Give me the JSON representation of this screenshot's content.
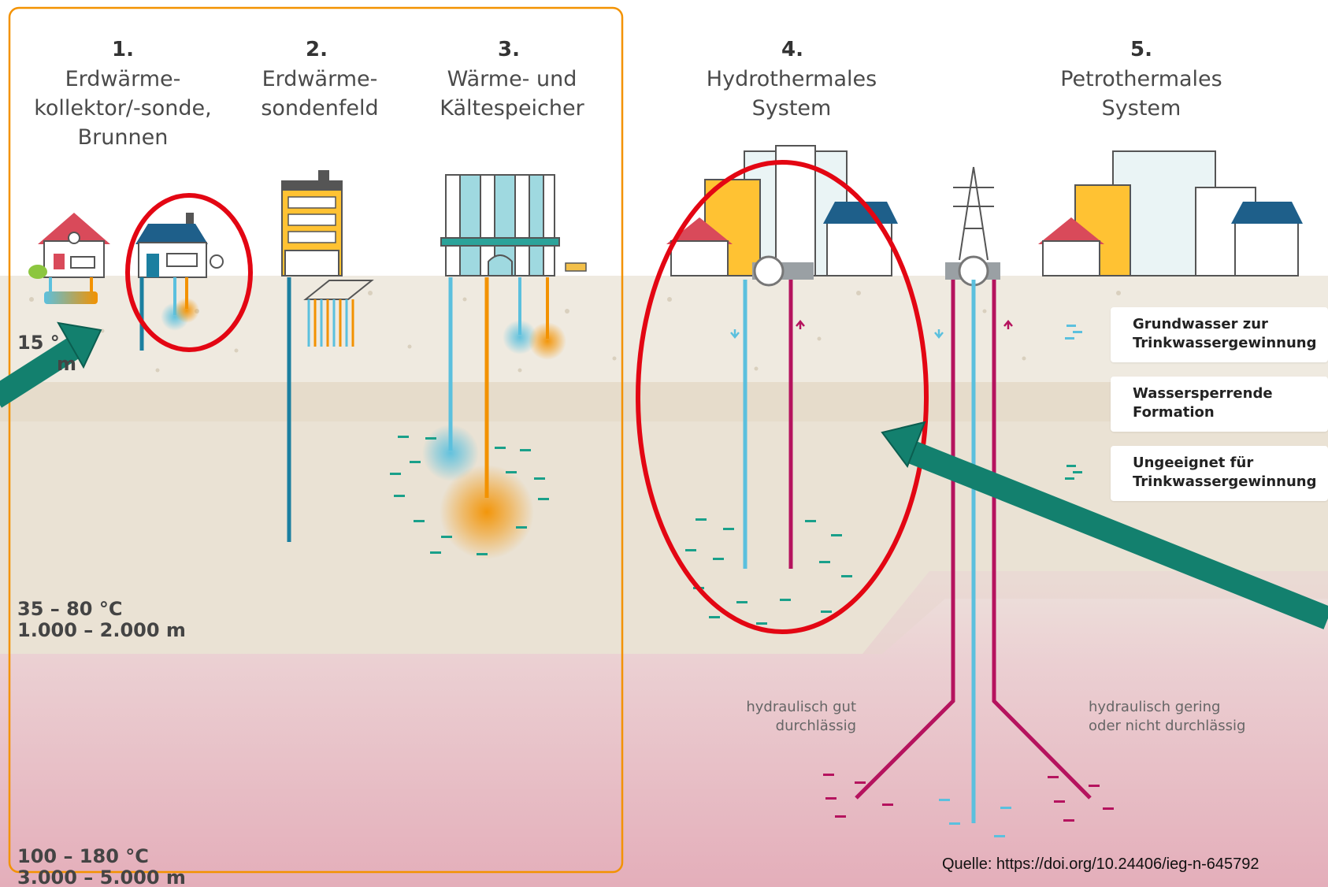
{
  "systems": [
    {
      "number": "1.",
      "lines": [
        "Erdwärme-",
        "kollektor/-sonde,",
        "Brunnen"
      ]
    },
    {
      "number": "2.",
      "lines": [
        "Erdwärme-",
        "sondenfeld"
      ]
    },
    {
      "number": "3.",
      "lines": [
        "Wärme- und",
        "Kältespeicher"
      ]
    },
    {
      "number": "4.",
      "lines": [
        "Hydrothermales",
        "System"
      ]
    },
    {
      "number": "5.",
      "lines": [
        "Petrothermales",
        "System"
      ]
    }
  ],
  "depth_labels": [
    {
      "temperature": "15 °",
      "depth": "m"
    },
    {
      "temperature": "35 – 80 °C",
      "depth": "1.000 – 2.000 m"
    },
    {
      "temperature": "100 – 180 °C",
      "depth": "3.000 – 5.000 m"
    }
  ],
  "legend": [
    {
      "lines": [
        "Grundwasser zur",
        "Trinkwassergewinnung"
      ]
    },
    {
      "lines": [
        "Wassersperrende",
        "Formation"
      ]
    },
    {
      "lines": [
        "Ungeeignet für",
        "Trinkwassergewinnung"
      ]
    }
  ],
  "permeability": {
    "good": [
      "hydraulisch gut",
      "durchlässig"
    ],
    "poor": [
      "hydraulisch gering",
      "oder nicht durchlässig"
    ]
  },
  "source": "Quelle: https://doi.org/10.24406/ieg-n-645792",
  "colors": {
    "accent_orange": "#F39200",
    "highlight_red": "#E30613",
    "arrow_teal": "#13806E",
    "probe_blue": "#1B7FA0",
    "cold_blue": "#5BC0DE",
    "hot_magenta": "#B5135E",
    "ground_light": "#EEE9DE",
    "ground_deep": "#E9C2CC"
  }
}
